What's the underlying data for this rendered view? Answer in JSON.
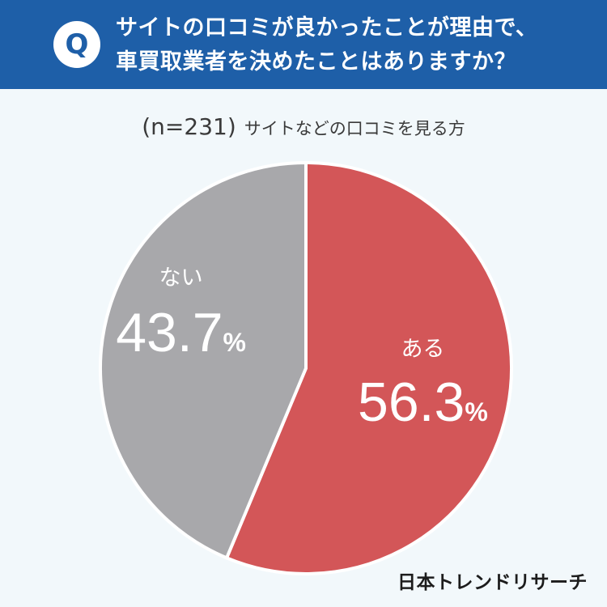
{
  "question": {
    "badge": "Q",
    "line1": "サイトの口コミが良かったことが理由で、",
    "line2": "車買取業者を決めたことはありますか？"
  },
  "subtitle": {
    "n": "(n=231)",
    "text": "サイトなどの口コミを見る方"
  },
  "logo": "日本トレンドリサーチ",
  "chart_data": {
    "type": "pie",
    "series": [
      {
        "name": "ある",
        "value": 56.3,
        "label": "56.3",
        "unit": "%",
        "color": "#d35658"
      },
      {
        "name": "ない",
        "value": 43.7,
        "label": "43.7",
        "unit": "%",
        "color": "#a8a8ab"
      }
    ],
    "start": "12 o'clock",
    "direction": "clockwise"
  }
}
